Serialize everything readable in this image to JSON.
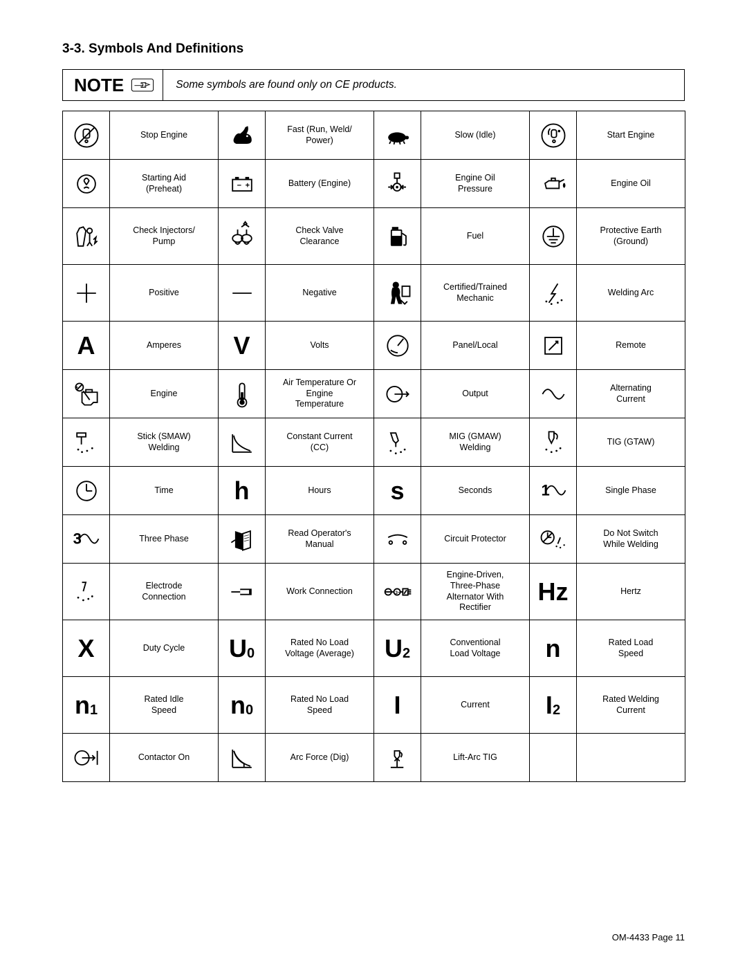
{
  "heading": "3-3.   Symbols And Definitions",
  "note": {
    "label": "NOTE",
    "text": "Some symbols are found only on CE products."
  },
  "rows": [
    [
      {
        "icon": "stop-engine",
        "label": "Stop Engine"
      },
      {
        "icon": "rabbit",
        "label": "Fast (Run, Weld/\nPower)"
      },
      {
        "icon": "turtle",
        "label": "Slow (Idle)"
      },
      {
        "icon": "start-engine",
        "label": "Start Engine"
      }
    ],
    [
      {
        "icon": "preheat",
        "label": "Starting Aid\n(Preheat)"
      },
      {
        "icon": "battery",
        "label": "Battery (Engine)"
      },
      {
        "icon": "oil-pressure",
        "label": "Engine Oil\nPressure"
      },
      {
        "icon": "oil-can",
        "label": "Engine Oil"
      }
    ],
    [
      {
        "icon": "injector",
        "label": "Check Injectors/\nPump"
      },
      {
        "icon": "valve",
        "label": "Check Valve\nClearance"
      },
      {
        "icon": "fuel",
        "label": "Fuel"
      },
      {
        "icon": "ground",
        "label": "Protective Earth\n(Ground)"
      }
    ],
    [
      {
        "icon": "plus",
        "label": "Positive"
      },
      {
        "icon": "minus",
        "label": "Negative"
      },
      {
        "icon": "mechanic",
        "label": "Certified/Trained\nMechanic"
      },
      {
        "icon": "arc",
        "label": "Welding Arc"
      }
    ],
    [
      {
        "icon": "A",
        "text": "A",
        "label": "Amperes"
      },
      {
        "icon": "V",
        "text": "V",
        "label": "Volts"
      },
      {
        "icon": "panel",
        "label": "Panel/Local"
      },
      {
        "icon": "remote",
        "label": "Remote"
      }
    ],
    [
      {
        "icon": "engine",
        "label": "Engine"
      },
      {
        "icon": "thermometer",
        "label": "Air Temperature Or\nEngine\nTemperature"
      },
      {
        "icon": "output",
        "label": "Output"
      },
      {
        "icon": "ac",
        "label": "Alternating\nCurrent"
      }
    ],
    [
      {
        "icon": "smaw",
        "label": "Stick (SMAW)\nWelding"
      },
      {
        "icon": "cc",
        "label": "Constant Current\n(CC)"
      },
      {
        "icon": "gmaw",
        "label": "MIG (GMAW)\nWelding"
      },
      {
        "icon": "gtaw",
        "label": "TIG (GTAW)"
      }
    ],
    [
      {
        "icon": "clock",
        "label": "Time"
      },
      {
        "icon": "h",
        "text": "h",
        "label": "Hours"
      },
      {
        "icon": "s",
        "text": "s",
        "label": "Seconds"
      },
      {
        "icon": "single-phase",
        "label": "Single Phase"
      }
    ],
    [
      {
        "icon": "three-phase",
        "label": "Three Phase"
      },
      {
        "icon": "manual",
        "label": "Read Operator's\nManual"
      },
      {
        "icon": "circuit",
        "label": "Circuit Protector"
      },
      {
        "icon": "no-switch",
        "label": "Do Not Switch\nWhile Welding"
      }
    ],
    [
      {
        "icon": "electrode",
        "label": "Electrode\nConnection"
      },
      {
        "icon": "work",
        "label": "Work Connection"
      },
      {
        "icon": "alternator",
        "label": "Engine-Driven,\nThree-Phase\nAlternator With\nRectifier"
      },
      {
        "icon": "Hz",
        "text": "Hz",
        "label": "Hertz"
      }
    ],
    [
      {
        "icon": "X",
        "text": "X",
        "label": "Duty Cycle"
      },
      {
        "icon": "U0",
        "text": "U",
        "sub": "0",
        "label": "Rated No Load\nVoltage (Average)"
      },
      {
        "icon": "U2",
        "text": "U",
        "sub": "2",
        "label": "Conventional\nLoad Voltage"
      },
      {
        "icon": "n",
        "text": "n",
        "label": "Rated Load\nSpeed"
      }
    ],
    [
      {
        "icon": "n1",
        "text": "n",
        "sub": "1",
        "label": "Rated Idle\nSpeed"
      },
      {
        "icon": "n0",
        "text": "n",
        "sub": "0",
        "label": "Rated No Load\nSpeed"
      },
      {
        "icon": "I",
        "text": "I",
        "label": "Current"
      },
      {
        "icon": "I2",
        "text": "I",
        "sub": "2",
        "label": "Rated Welding\nCurrent"
      }
    ],
    [
      {
        "icon": "contactor",
        "label": "Contactor On"
      },
      {
        "icon": "arcforce",
        "label": "Arc Force (Dig)"
      },
      {
        "icon": "lift-arc",
        "label": "Lift-Arc TIG"
      },
      {
        "icon": "",
        "label": ""
      }
    ]
  ],
  "tall_rows": [
    2,
    3,
    9,
    10,
    11
  ],
  "footer": "OM-4433 Page 11",
  "colors": {
    "text": "#000000",
    "bg": "#ffffff",
    "border": "#000000"
  }
}
